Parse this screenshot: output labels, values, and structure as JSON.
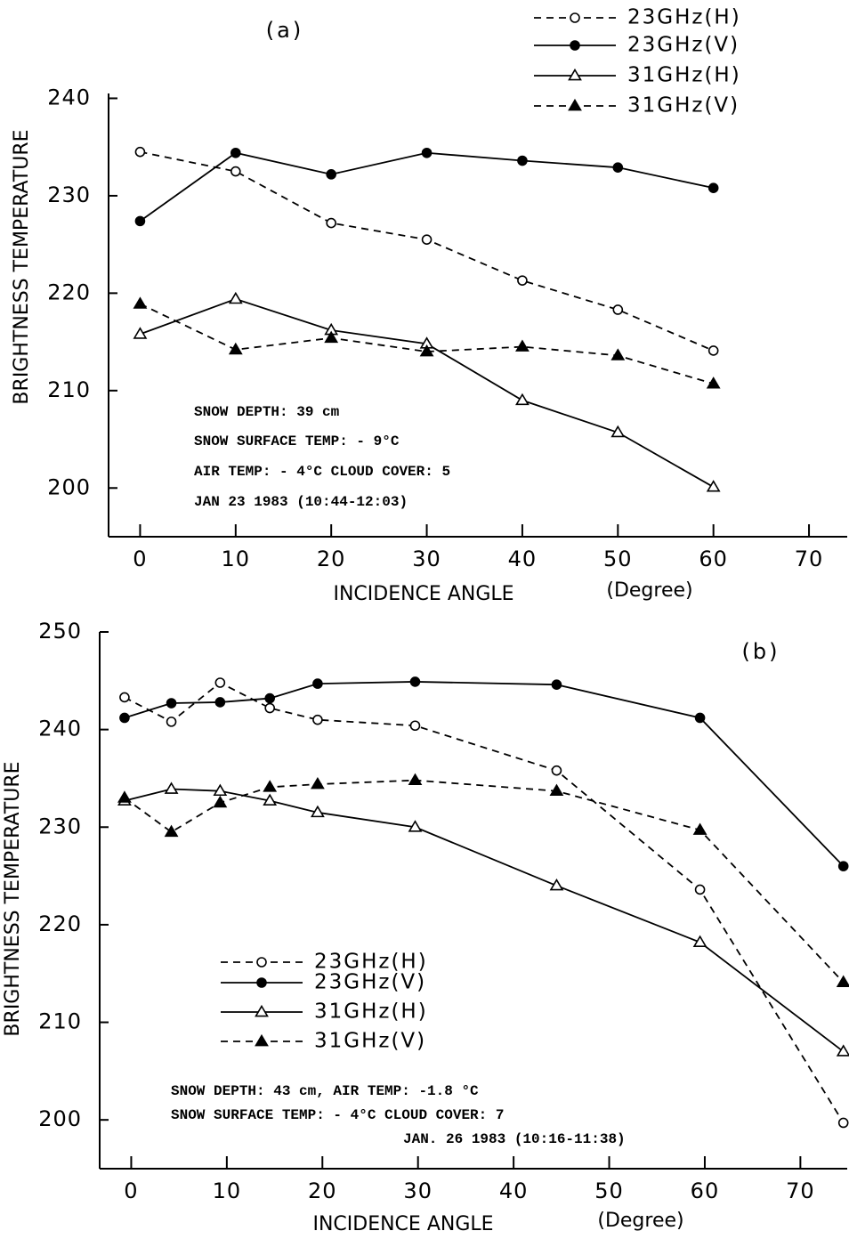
{
  "chart_data": [
    {
      "type": "line",
      "title": "(a)",
      "x_label": "INCIDENCE ANGLE",
      "x_unit": "(Degree)",
      "y_label": "BRIGHTNESS TEMPERATURE",
      "x": [
        0,
        10,
        20,
        30,
        40,
        50,
        60
      ],
      "xlim": [
        -3.3,
        74
      ],
      "ylim": [
        195,
        240.5
      ],
      "xticks": [
        0,
        10,
        20,
        30,
        40,
        50,
        60,
        70
      ],
      "yticks": [
        200,
        210,
        220,
        230,
        240
      ],
      "legend": "upper right",
      "series": [
        {
          "name": "23GHz(H)",
          "color": "#000000",
          "marker": "open-circle",
          "linestyle": "dashed",
          "values": [
            234.5,
            232.5,
            227.2,
            225.5,
            221.3,
            218.3,
            214.1
          ]
        },
        {
          "name": "23GHz(V)",
          "color": "#000000",
          "marker": "filled-circle",
          "linestyle": "solid",
          "values": [
            227.4,
            234.4,
            232.2,
            234.4,
            233.6,
            232.9,
            230.8
          ]
        },
        {
          "name": "31GHz(H)",
          "color": "#000000",
          "marker": "open-triangle",
          "linestyle": "solid",
          "values": [
            215.8,
            219.4,
            216.2,
            214.8,
            209.0,
            205.7,
            200.1
          ]
        },
        {
          "name": "31GHz(V)",
          "color": "#000000",
          "marker": "filled-triangle",
          "linestyle": "dashed",
          "values": [
            218.9,
            214.2,
            215.4,
            214.0,
            214.5,
            213.6,
            210.7
          ]
        }
      ],
      "annotations": [
        "SNOW DEPTH: 39 cm",
        "SNOW SURFACE TEMP: - 9°C",
        "AIR TEMP: - 4°C  CLOUD COVER: 5",
        "JAN 23 1983 (10:44-12:03)"
      ]
    },
    {
      "type": "line",
      "title": "(b)",
      "x_label": "INCIDENCE ANGLE",
      "x_unit": "(Degree)",
      "y_label": "BRIGHTNESS TEMPERATURE",
      "x": [
        -0.7,
        4.2,
        9.3,
        14.5,
        19.5,
        29.7,
        44.5,
        59.5,
        74.5
      ],
      "xlim": [
        -3.3,
        74.9
      ],
      "ylim": [
        195,
        250
      ],
      "xticks": [
        0,
        10,
        20,
        30,
        40,
        50,
        60,
        70
      ],
      "yticks": [
        200,
        210,
        220,
        230,
        240,
        250
      ],
      "legend": "center left",
      "series": [
        {
          "name": "23GHz(H)",
          "color": "#000000",
          "marker": "open-circle",
          "linestyle": "dashed",
          "values": [
            243.3,
            240.8,
            244.8,
            242.2,
            241.0,
            240.4,
            235.8,
            223.6,
            199.7
          ]
        },
        {
          "name": "23GHz(V)",
          "color": "#000000",
          "marker": "filled-circle",
          "linestyle": "solid",
          "values": [
            241.2,
            242.7,
            242.8,
            243.2,
            244.7,
            244.9,
            244.6,
            241.2,
            226.0
          ]
        },
        {
          "name": "31GHz(H)",
          "color": "#000000",
          "marker": "open-triangle",
          "linestyle": "solid",
          "values": [
            232.7,
            233.9,
            233.7,
            232.7,
            231.5,
            230.0,
            224.0,
            218.2,
            207.0
          ]
        },
        {
          "name": "31GHz(V)",
          "color": "#000000",
          "marker": "filled-triangle",
          "linestyle": "dashed",
          "values": [
            233.0,
            229.5,
            232.5,
            234.1,
            234.4,
            234.8,
            233.7,
            229.7,
            214.1
          ]
        }
      ],
      "annotations": [
        "SNOW DEPTH: 43 cm,  AIR TEMP: -1.8 °C",
        "SNOW SURFACE TEMP: - 4°C  CLOUD COVER: 7",
        "JAN. 26 1983 (10:16-11:38)"
      ]
    }
  ]
}
